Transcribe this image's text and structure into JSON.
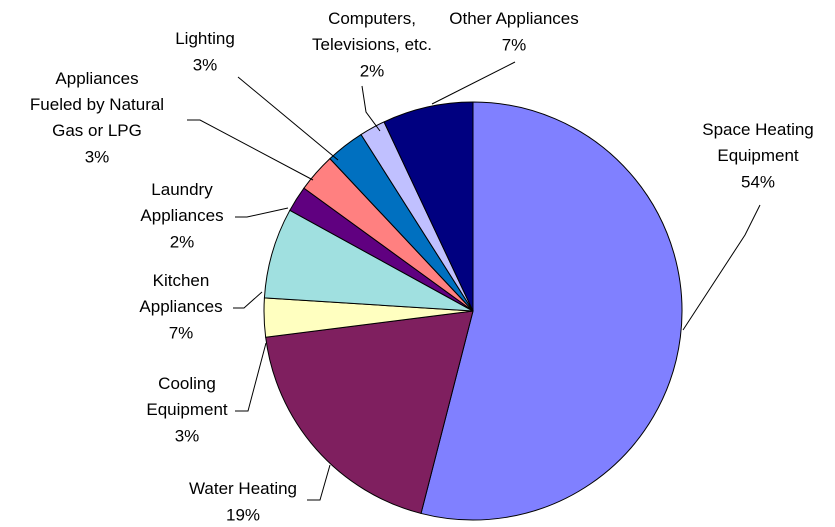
{
  "chart_data": {
    "type": "pie",
    "categories": [
      "Space Heating Equipment",
      "Water Heating",
      "Cooling Equipment",
      "Kitchen Appliances",
      "Laundry Appliances",
      "Appliances Fueled by Natural Gas or LPG",
      "Lighting",
      "Computers, Televisions, etc.",
      "Other Appliances"
    ],
    "values": [
      54,
      19,
      3,
      7,
      2,
      3,
      3,
      2,
      7
    ],
    "value_labels": [
      "54%",
      "19%",
      "3%",
      "7%",
      "2%",
      "3%",
      "3%",
      "2%",
      "7%"
    ],
    "colors": [
      "#8080ff",
      "#7f1f5f",
      "#ffffc0",
      "#a0e0e0",
      "#600080",
      "#ff8080",
      "#0070c0",
      "#c0c0ff",
      "#000080"
    ]
  }
}
